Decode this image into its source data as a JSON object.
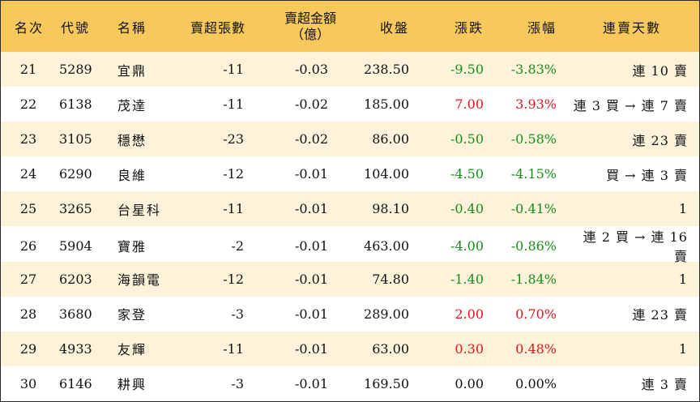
{
  "headers": {
    "rank": "名次",
    "code": "代號",
    "name": "名稱",
    "net_sell_lots": "賣超張數",
    "net_sell_amount_line1": "賣超金額",
    "net_sell_amount_line2": "（億）",
    "close": "收盤",
    "change": "漲跌",
    "change_pct": "漲幅",
    "streak": "連賣天數"
  },
  "colors": {
    "header_bg": "#f7c95c",
    "shade_row_bg": "#fdf3db",
    "up": "#e0161b",
    "down": "#1a8c1a"
  },
  "rows": [
    {
      "rank": "21",
      "code": "5289",
      "name": "宜鼎",
      "lots": "-11",
      "amount": "-0.03",
      "close": "238.50",
      "change": "-9.50",
      "pct": "-3.83%",
      "streak": "連 10 賣",
      "dir": "down"
    },
    {
      "rank": "22",
      "code": "6138",
      "name": "茂達",
      "lots": "-11",
      "amount": "-0.02",
      "close": "185.00",
      "change": "7.00",
      "pct": "3.93%",
      "streak": "連 3 買 → 連 7 賣",
      "dir": "up"
    },
    {
      "rank": "23",
      "code": "3105",
      "name": "穩懋",
      "lots": "-23",
      "amount": "-0.02",
      "close": "86.00",
      "change": "-0.50",
      "pct": "-0.58%",
      "streak": "連 23 賣",
      "dir": "down"
    },
    {
      "rank": "24",
      "code": "6290",
      "name": "良維",
      "lots": "-12",
      "amount": "-0.01",
      "close": "104.00",
      "change": "-4.50",
      "pct": "-4.15%",
      "streak": "買 → 連 3 賣",
      "dir": "down"
    },
    {
      "rank": "25",
      "code": "3265",
      "name": "台星科",
      "lots": "-11",
      "amount": "-0.01",
      "close": "98.10",
      "change": "-0.40",
      "pct": "-0.41%",
      "streak": "1",
      "dir": "down"
    },
    {
      "rank": "26",
      "code": "5904",
      "name": "寶雅",
      "lots": "-2",
      "amount": "-0.01",
      "close": "463.00",
      "change": "-4.00",
      "pct": "-0.86%",
      "streak": "連 2 買 → 連 16 賣",
      "dir": "down"
    },
    {
      "rank": "27",
      "code": "6203",
      "name": "海韻電",
      "lots": "-12",
      "amount": "-0.01",
      "close": "74.80",
      "change": "-1.40",
      "pct": "-1.84%",
      "streak": "1",
      "dir": "down"
    },
    {
      "rank": "28",
      "code": "3680",
      "name": "家登",
      "lots": "-3",
      "amount": "-0.01",
      "close": "289.00",
      "change": "2.00",
      "pct": "0.70%",
      "streak": "連 23 賣",
      "dir": "up"
    },
    {
      "rank": "29",
      "code": "4933",
      "name": "友輝",
      "lots": "-11",
      "amount": "-0.01",
      "close": "63.00",
      "change": "0.30",
      "pct": "0.48%",
      "streak": "1",
      "dir": "up"
    },
    {
      "rank": "30",
      "code": "6146",
      "name": "耕興",
      "lots": "-3",
      "amount": "-0.01",
      "close": "169.50",
      "change": "0.00",
      "pct": "0.00%",
      "streak": "連 3 賣",
      "dir": "flat"
    }
  ]
}
